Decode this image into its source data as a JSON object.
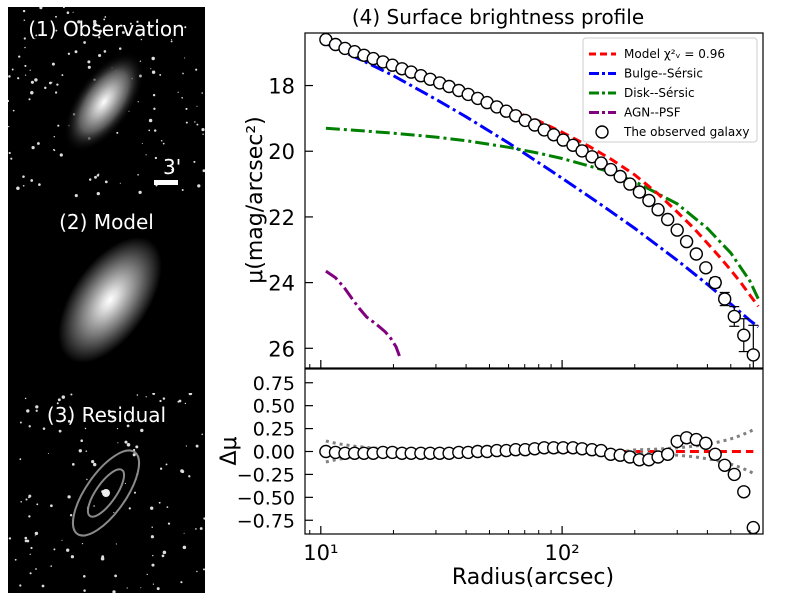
{
  "panels": [
    {
      "label": "(1) Observation",
      "scale_bar": "3'"
    },
    {
      "label": "(2) Model"
    },
    {
      "label": "(3) Residual"
    }
  ],
  "chart_data": {
    "title": "(4) Surface brightness profile",
    "xlabel": "Radius(arcsec)",
    "ylabel_top": "μ(mag/arcsec²)",
    "ylabel_bottom": "Δμ",
    "xscale": "log",
    "xlim": [
      8.6,
      680
    ],
    "ylim_top": [
      26.6,
      16.4
    ],
    "ylim_bottom": [
      -0.9,
      0.9
    ],
    "xtick_labels": [
      "10¹",
      "10²"
    ],
    "xtick_values": [
      10,
      100
    ],
    "ytick_top": [
      18,
      20,
      22,
      24,
      26
    ],
    "ytick_top_labels": [
      "18",
      "20",
      "22",
      "24",
      "26"
    ],
    "ytick_bottom": [
      0.75,
      0.5,
      0.25,
      0.0,
      -0.25,
      -0.5,
      -0.75
    ],
    "ytick_bottom_labels": [
      "0.75",
      "0.50",
      "0.25",
      "0.00",
      "−0.25",
      "−0.50",
      "−0.75"
    ],
    "legend": [
      {
        "label": "Model χ²ᵥ = 0.96",
        "color": "#ff0000",
        "style": "dashed"
      },
      {
        "label": "Bulge--Sérsic",
        "color": "#0000ff",
        "style": "dashdot"
      },
      {
        "label": "Disk--Sérsic",
        "color": "#008000",
        "style": "dashdot"
      },
      {
        "label": "AGN--PSF",
        "color": "#800080",
        "style": "dashdot"
      },
      {
        "label": "The observed galaxy",
        "color": "#000000",
        "style": "marker"
      }
    ],
    "observed": {
      "r": [
        10.5,
        11.5,
        12.6,
        13.8,
        15.1,
        16.5,
        18.1,
        19.8,
        21.7,
        23.7,
        26.0,
        28.4,
        31.1,
        34.0,
        37.3,
        40.8,
        44.7,
        48.9,
        53.6,
        58.7,
        64.2,
        70.3,
        77.0,
        84.3,
        92.3,
        101,
        111,
        121,
        133,
        145,
        159,
        174,
        191,
        209,
        229,
        250,
        274,
        300,
        328,
        360,
        394,
        431,
        472,
        517,
        566,
        620
      ],
      "mu": [
        16.6,
        16.75,
        16.87,
        16.97,
        17.08,
        17.18,
        17.28,
        17.38,
        17.49,
        17.59,
        17.7,
        17.81,
        17.92,
        18.03,
        18.15,
        18.27,
        18.39,
        18.52,
        18.65,
        18.78,
        18.92,
        19.06,
        19.2,
        19.35,
        19.5,
        19.66,
        19.82,
        19.99,
        20.17,
        20.36,
        20.56,
        20.77,
        21.0,
        21.24,
        21.5,
        21.78,
        22.08,
        22.4,
        22.75,
        23.13,
        23.55,
        24.0,
        24.5,
        25.03,
        25.6,
        26.2
      ]
    },
    "model": {
      "r": [
        10.5,
        12,
        14,
        17,
        20,
        25,
        30,
        40,
        50,
        60,
        80,
        100,
        130,
        160,
        200,
        250,
        300,
        350,
        400,
        450,
        500,
        550,
        600,
        650
      ],
      "mu": [
        16.62,
        16.82,
        17.02,
        17.26,
        17.46,
        17.72,
        17.94,
        18.25,
        18.52,
        18.72,
        19.08,
        19.42,
        19.86,
        20.25,
        20.72,
        21.3,
        21.85,
        22.33,
        22.8,
        23.22,
        23.62,
        24.0,
        24.38,
        24.72
      ]
    },
    "bulge": {
      "r": [
        10.5,
        12,
        15,
        20,
        30,
        40,
        60,
        80,
        100,
        150,
        200,
        300,
        400,
        500,
        600,
        650
      ],
      "mu": [
        16.72,
        16.92,
        17.25,
        17.7,
        18.42,
        18.95,
        19.75,
        20.35,
        20.82,
        21.7,
        22.35,
        23.32,
        24.05,
        24.65,
        25.15,
        25.35
      ]
    },
    "disk": {
      "r": [
        10.5,
        15,
        20,
        30,
        40,
        60,
        80,
        100,
        150,
        200,
        300,
        400,
        500,
        600,
        650
      ],
      "mu": [
        19.3,
        19.38,
        19.45,
        19.57,
        19.68,
        19.88,
        20.06,
        20.22,
        20.58,
        20.92,
        21.6,
        22.35,
        23.1,
        23.95,
        24.5
      ]
    },
    "agn": {
      "r": [
        10.5,
        11.5,
        12.5,
        13.5,
        14.5,
        15.5,
        16.5,
        17.5,
        18.5,
        19.5,
        20.5,
        21.2
      ],
      "mu": [
        23.65,
        23.85,
        24.15,
        24.5,
        24.8,
        25.05,
        25.2,
        25.35,
        25.5,
        25.7,
        25.95,
        26.25
      ]
    },
    "residual": {
      "r": [
        10.5,
        11.5,
        12.6,
        13.8,
        15.1,
        16.5,
        18.1,
        19.8,
        21.7,
        23.7,
        26.0,
        28.4,
        31.1,
        34.0,
        37.3,
        40.8,
        44.7,
        48.9,
        53.6,
        58.7,
        64.2,
        70.3,
        77.0,
        84.3,
        92.3,
        101,
        111,
        121,
        133,
        145,
        159,
        174,
        191,
        209,
        229,
        250,
        274,
        300,
        328,
        360,
        394,
        431,
        472,
        517,
        566,
        620
      ],
      "d": [
        0.0,
        -0.01,
        -0.02,
        -0.02,
        -0.02,
        -0.02,
        -0.01,
        -0.01,
        -0.02,
        -0.02,
        -0.02,
        -0.02,
        -0.02,
        -0.02,
        -0.01,
        -0.01,
        0.0,
        0.0,
        0.01,
        0.01,
        0.02,
        0.02,
        0.03,
        0.04,
        0.04,
        0.04,
        0.04,
        0.03,
        0.02,
        0.01,
        -0.03,
        -0.04,
        -0.06,
        -0.09,
        -0.09,
        -0.06,
        -0.03,
        0.11,
        0.15,
        0.13,
        0.09,
        -0.03,
        -0.15,
        -0.25,
        -0.44,
        -0.83
      ]
    },
    "errorbars": {
      "r": [
        431,
        472,
        517,
        566,
        620
      ],
      "err": [
        0.15,
        0.2,
        0.3,
        0.5,
        0.9
      ]
    }
  }
}
